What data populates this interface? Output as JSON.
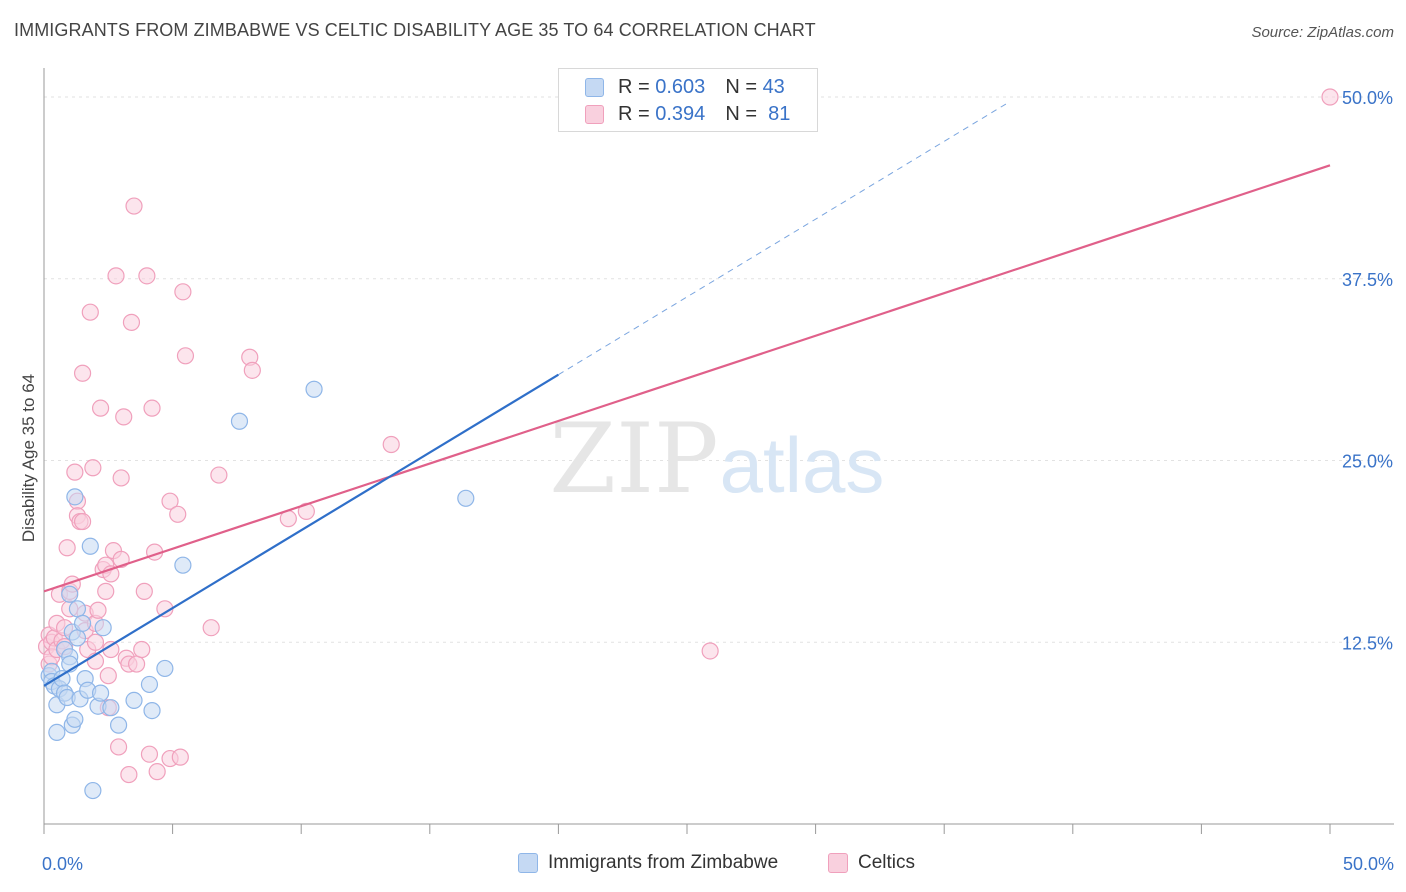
{
  "title": "IMMIGRANTS FROM ZIMBABWE VS CELTIC DISABILITY AGE 35 TO 64 CORRELATION CHART",
  "source": "Source: ZipAtlas.com",
  "watermark": {
    "zip": "ZIP",
    "atlas": "atlas"
  },
  "legend": {
    "r_label": "R =",
    "n_label": "N =",
    "series": [
      {
        "name": "Immigrants from Zimbabwe",
        "r": "0.603",
        "n": "43",
        "color": "#8fb6e8",
        "fill": "#c5d9f3",
        "line": "#2f6fc9"
      },
      {
        "name": "Celtics",
        "r": "0.394",
        "n": "81",
        "color": "#f0a0bc",
        "fill": "#f9d0de",
        "line": "#e0608a"
      }
    ]
  },
  "chart_data": {
    "type": "scatter",
    "title": "IMMIGRANTS FROM ZIMBABWE VS CELTIC DISABILITY AGE 35 TO 64 CORRELATION CHART",
    "xlabel": "",
    "ylabel": "Disability Age 35 to 64",
    "xlim": [
      0,
      50
    ],
    "ylim": [
      0,
      52
    ],
    "x_tick_labels": [
      {
        "value": 0,
        "label": "0.0%"
      },
      {
        "value": 50,
        "label": "50.0%"
      }
    ],
    "y_tick_labels": [
      {
        "value": 12.5,
        "label": "12.5%"
      },
      {
        "value": 25,
        "label": "25.0%"
      },
      {
        "value": 37.5,
        "label": "37.5%"
      },
      {
        "value": 50,
        "label": "50.0%"
      }
    ],
    "series": [
      {
        "name": "Immigrants from Zimbabwe",
        "trend": {
          "x0": 0,
          "y0": 9.5,
          "x1": 20,
          "y1": 30.9,
          "dashed_to_x": 37.5
        },
        "points": [
          [
            0.2,
            10.2
          ],
          [
            0.3,
            10.5
          ],
          [
            0.3,
            9.8
          ],
          [
            0.4,
            9.5
          ],
          [
            0.5,
            8.2
          ],
          [
            0.5,
            6.3
          ],
          [
            0.6,
            9.3
          ],
          [
            0.7,
            10.0
          ],
          [
            0.8,
            9.0
          ],
          [
            0.8,
            12.0
          ],
          [
            0.9,
            8.7
          ],
          [
            1.0,
            11.5
          ],
          [
            1.0,
            11.0
          ],
          [
            1.0,
            15.8
          ],
          [
            1.1,
            13.2
          ],
          [
            1.1,
            6.8
          ],
          [
            1.2,
            7.2
          ],
          [
            1.2,
            22.5
          ],
          [
            1.3,
            14.8
          ],
          [
            1.3,
            12.8
          ],
          [
            1.4,
            8.6
          ],
          [
            1.5,
            13.8
          ],
          [
            1.6,
            10.0
          ],
          [
            1.7,
            9.2
          ],
          [
            1.8,
            19.1
          ],
          [
            1.9,
            2.3
          ],
          [
            2.1,
            8.1
          ],
          [
            2.2,
            9.0
          ],
          [
            2.3,
            13.5
          ],
          [
            2.6,
            8.0
          ],
          [
            2.9,
            6.8
          ],
          [
            3.5,
            8.5
          ],
          [
            4.1,
            9.6
          ],
          [
            4.2,
            7.8
          ],
          [
            4.7,
            10.7
          ],
          [
            5.4,
            17.8
          ],
          [
            7.6,
            27.7
          ],
          [
            10.5,
            29.9
          ],
          [
            16.4,
            22.4
          ]
        ]
      },
      {
        "name": "Celtics",
        "trend": {
          "x0": 0,
          "y0": 16.0,
          "x1": 50,
          "y1": 45.3
        },
        "points": [
          [
            0.1,
            12.2
          ],
          [
            0.2,
            11.0
          ],
          [
            0.2,
            13.0
          ],
          [
            0.3,
            12.5
          ],
          [
            0.3,
            11.5
          ],
          [
            0.4,
            12.8
          ],
          [
            0.5,
            13.8
          ],
          [
            0.5,
            12.0
          ],
          [
            0.6,
            15.8
          ],
          [
            0.7,
            12.6
          ],
          [
            0.8,
            13.5
          ],
          [
            0.8,
            12.2
          ],
          [
            0.9,
            19.0
          ],
          [
            1.0,
            16.0
          ],
          [
            1.0,
            14.8
          ],
          [
            1.1,
            16.5
          ],
          [
            1.2,
            24.2
          ],
          [
            1.3,
            22.2
          ],
          [
            1.3,
            21.2
          ],
          [
            1.4,
            20.8
          ],
          [
            1.5,
            20.8
          ],
          [
            1.5,
            31.0
          ],
          [
            1.6,
            14.5
          ],
          [
            1.6,
            13.3
          ],
          [
            1.7,
            12.0
          ],
          [
            1.8,
            35.2
          ],
          [
            1.9,
            24.5
          ],
          [
            2.0,
            12.5
          ],
          [
            2.0,
            11.2
          ],
          [
            2.0,
            13.8
          ],
          [
            2.1,
            14.7
          ],
          [
            2.2,
            28.6
          ],
          [
            2.3,
            17.5
          ],
          [
            2.4,
            17.8
          ],
          [
            2.4,
            16.0
          ],
          [
            2.5,
            10.2
          ],
          [
            2.5,
            8.0
          ],
          [
            2.6,
            17.2
          ],
          [
            2.6,
            12.0
          ],
          [
            2.7,
            18.8
          ],
          [
            2.8,
            37.7
          ],
          [
            2.9,
            5.3
          ],
          [
            3.0,
            18.2
          ],
          [
            3.0,
            23.8
          ],
          [
            3.1,
            28.0
          ],
          [
            3.2,
            11.4
          ],
          [
            3.3,
            11.0
          ],
          [
            3.3,
            3.4
          ],
          [
            3.4,
            34.5
          ],
          [
            3.5,
            42.5
          ],
          [
            3.6,
            11.0
          ],
          [
            3.8,
            12.0
          ],
          [
            3.9,
            16.0
          ],
          [
            4.0,
            37.7
          ],
          [
            4.1,
            4.8
          ],
          [
            4.2,
            28.6
          ],
          [
            4.3,
            18.7
          ],
          [
            4.4,
            3.6
          ],
          [
            4.7,
            14.8
          ],
          [
            4.9,
            22.2
          ],
          [
            4.9,
            4.5
          ],
          [
            5.2,
            21.3
          ],
          [
            5.3,
            4.6
          ],
          [
            5.4,
            36.6
          ],
          [
            5.5,
            32.2
          ],
          [
            6.5,
            13.5
          ],
          [
            6.8,
            24.0
          ],
          [
            8.0,
            32.1
          ],
          [
            8.1,
            31.2
          ],
          [
            9.5,
            21.0
          ],
          [
            10.2,
            21.5
          ],
          [
            13.5,
            26.1
          ],
          [
            25.9,
            11.9
          ],
          [
            50.0,
            50.0
          ]
        ]
      }
    ]
  }
}
